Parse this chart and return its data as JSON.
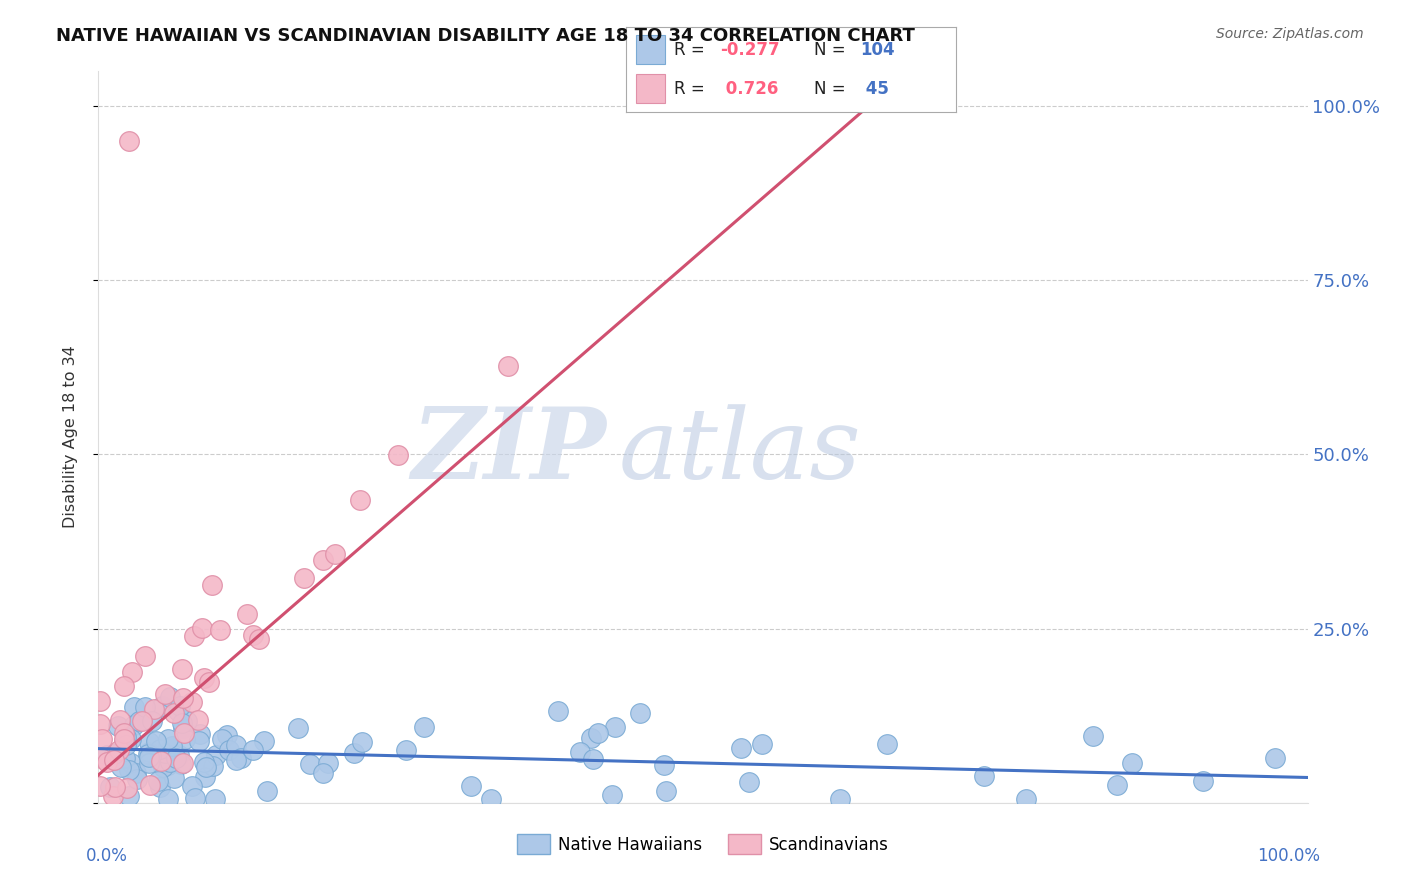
{
  "title": "NATIVE HAWAIIAN VS SCANDINAVIAN DISABILITY AGE 18 TO 34 CORRELATION CHART",
  "source": "Source: ZipAtlas.com",
  "ylabel": "Disability Age 18 to 34",
  "watermark_zip": "ZIP",
  "watermark_atlas": "atlas",
  "hawaiian_R": -0.277,
  "hawaiian_N": 104,
  "scandinavian_R": 0.726,
  "scandinavian_N": 45,
  "hawaiian_color": "#adc8e8",
  "hawaiian_edge": "#7aaad4",
  "hawaiian_line": "#4472c4",
  "scandinavian_color": "#f4b8c8",
  "scandinavian_edge": "#e090a8",
  "scandinavian_line": "#d05070",
  "title_fontsize": 13,
  "background_color": "#ffffff",
  "legend_R_color": "#ff6080",
  "legend_N_color": "#4472c4",
  "ytick_color": "#4472c4",
  "xtext_color": "#4472c4"
}
